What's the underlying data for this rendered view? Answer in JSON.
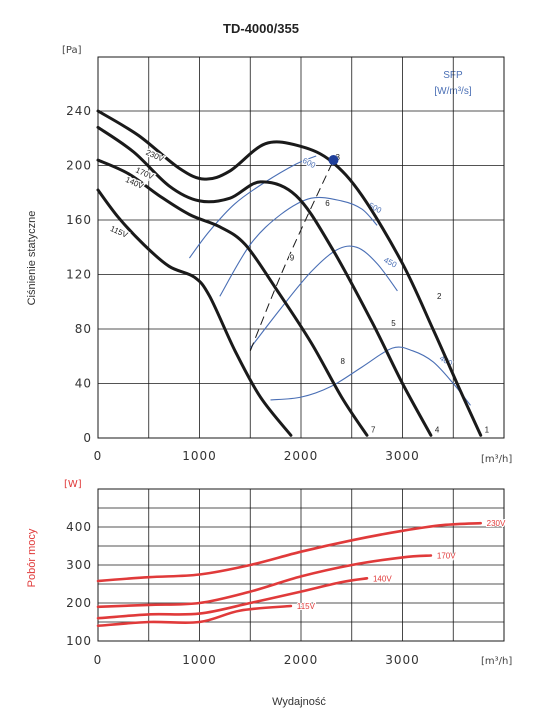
{
  "chart_data": [
    {
      "type": "line",
      "title": "TD-4000/355",
      "xlabel": "",
      "ylabel": "Ciśnienie statyczne",
      "x_unit": "[m³/h]",
      "y_unit": "[Pa]",
      "xlim": [
        0,
        4000
      ],
      "ylim": [
        0,
        240
      ],
      "x_ticks": [
        "0",
        "1000",
        "2000",
        "3000"
      ],
      "y_ticks": [
        "0",
        "40",
        "80",
        "120",
        "160",
        "200",
        "240"
      ],
      "grid": true,
      "sfp_title": "SFP",
      "sfp_unit": "[W/m³/s]",
      "series": [
        {
          "name": "230V",
          "x": [
            0,
            400,
            800,
            1050,
            1300,
            1650,
            2000,
            2300,
            2600,
            3000,
            3300,
            3550,
            3770
          ],
          "y": [
            240,
            222,
            198,
            190,
            196,
            216,
            214,
            203,
            178,
            128,
            80,
            38,
            2
          ]
        },
        {
          "name": "170V",
          "x": [
            0,
            350,
            700,
            1000,
            1300,
            1600,
            1950,
            2300,
            2700,
            3000,
            3280
          ],
          "y": [
            228,
            210,
            185,
            174,
            176,
            188,
            178,
            140,
            85,
            40,
            2
          ]
        },
        {
          "name": "140V",
          "x": [
            0,
            300,
            600,
            900,
            1200,
            1450,
            1750,
            2100,
            2400,
            2650
          ],
          "y": [
            204,
            194,
            178,
            164,
            155,
            142,
            110,
            70,
            30,
            2
          ]
        },
        {
          "name": "115V",
          "x": [
            0,
            200,
            450,
            700,
            950,
            1100,
            1350,
            1600,
            1900
          ],
          "y": [
            182,
            162,
            142,
            126,
            118,
            104,
            64,
            30,
            2
          ]
        }
      ],
      "sfp_curves": [
        {
          "name": "600",
          "x": [
            900,
            1100,
            1350,
            1650,
            1950,
            2150
          ],
          "y": [
            132,
            152,
            172,
            188,
            201,
            207
          ]
        },
        {
          "name": "500",
          "x": [
            1200,
            1500,
            1800,
            2100,
            2400,
            2600,
            2750
          ],
          "y": [
            104,
            142,
            164,
            176,
            174,
            168,
            156
          ]
        },
        {
          "name": "450",
          "x": [
            1500,
            1800,
            2100,
            2350,
            2550,
            2750,
            2950
          ],
          "y": [
            66,
            95,
            122,
            138,
            140,
            128,
            108
          ]
        },
        {
          "name": "400",
          "x": [
            1700,
            2000,
            2300,
            2600,
            2900,
            3100,
            3300,
            3500,
            3670
          ],
          "y": [
            28,
            30,
            38,
            52,
            66,
            64,
            56,
            40,
            24
          ]
        }
      ],
      "operating_points": [
        {
          "label": "1",
          "x": 3770,
          "y": 2
        },
        {
          "label": "2",
          "x": 3300,
          "y": 100
        },
        {
          "label": "3",
          "x": 2300,
          "y": 202
        },
        {
          "label": "4",
          "x": 3280,
          "y": 2
        },
        {
          "label": "5",
          "x": 2850,
          "y": 80
        },
        {
          "label": "6",
          "x": 2200,
          "y": 168
        },
        {
          "label": "7",
          "x": 2650,
          "y": 2
        },
        {
          "label": "8",
          "x": 2350,
          "y": 52
        },
        {
          "label": "9",
          "x": 1850,
          "y": 128
        }
      ],
      "design_point": {
        "x": 2320,
        "y": 204
      },
      "system_curve_x": [
        1500,
        1850,
        2320
      ],
      "system_curve_y": [
        64,
        128,
        204
      ]
    },
    {
      "type": "line",
      "xlabel": "Wydajność",
      "ylabel": "Pobór mocy",
      "x_unit": "[m³/h]",
      "y_unit": "[W]",
      "xlim": [
        0,
        4000
      ],
      "ylim": [
        100,
        450
      ],
      "x_ticks": [
        "0",
        "1000",
        "2000",
        "3000"
      ],
      "y_ticks": [
        "100",
        "200",
        "300",
        "400"
      ],
      "grid": true,
      "series": [
        {
          "name": "230V",
          "x": [
            0,
            500,
            1000,
            1500,
            2000,
            2500,
            3000,
            3400,
            3770
          ],
          "y": [
            258,
            268,
            275,
            300,
            335,
            365,
            390,
            405,
            410
          ]
        },
        {
          "name": "170V",
          "x": [
            0,
            500,
            1000,
            1500,
            2000,
            2500,
            3000,
            3280
          ],
          "y": [
            190,
            195,
            200,
            230,
            270,
            300,
            320,
            325
          ]
        },
        {
          "name": "140V",
          "x": [
            0,
            500,
            1000,
            1500,
            2000,
            2400,
            2650
          ],
          "y": [
            160,
            170,
            172,
            200,
            230,
            255,
            265
          ]
        },
        {
          "name": "115V",
          "x": [
            0,
            500,
            1000,
            1400,
            1900
          ],
          "y": [
            140,
            150,
            150,
            180,
            192
          ]
        }
      ],
      "colors": {
        "red": "#e03a3a",
        "blue": "#4a6fb5",
        "black": "#1a1a1a"
      }
    }
  ]
}
